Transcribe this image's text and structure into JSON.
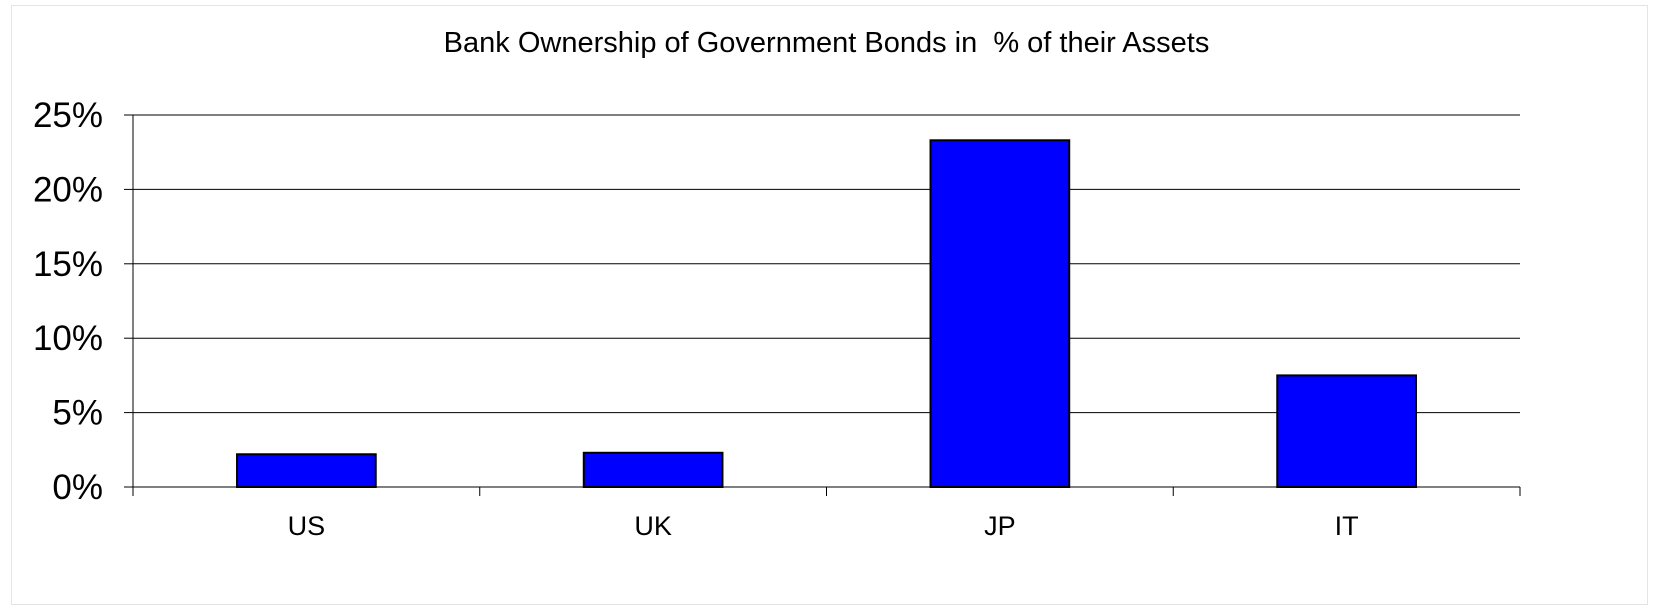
{
  "chart_data": {
    "type": "bar",
    "title": "Bank Ownership of Government Bonds in  % of their Assets",
    "xlabel": "",
    "ylabel": "",
    "categories": [
      "US",
      "UK",
      "JP",
      "IT"
    ],
    "values": [
      2.2,
      2.3,
      23.3,
      7.5
    ],
    "ylim": [
      0,
      25
    ],
    "yticks": [
      0,
      5,
      10,
      15,
      20,
      25
    ],
    "ytick_labels": [
      "0%",
      "5%",
      "10%",
      "15%",
      "20%",
      "25%"
    ],
    "grid": true,
    "legend": "none",
    "bar_color": "#0000ff"
  }
}
